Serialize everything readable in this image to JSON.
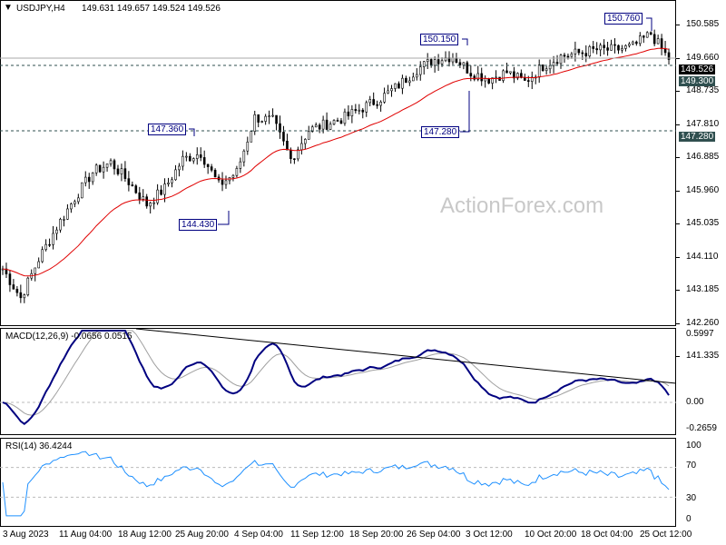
{
  "header": {
    "symbol": "USDJPY,H4",
    "ohlc": "149.631 149.657 149.524 149.526"
  },
  "watermark": "ActionForex.com",
  "price_axis": [
    "150.585",
    "149.660",
    "148.735",
    "147.810",
    "146.885",
    "145.960",
    "145.035",
    "144.110",
    "143.185",
    "142.260",
    "141.335"
  ],
  "price_tags": {
    "current": "149.526",
    "support1": "149.300",
    "support2": "147.280"
  },
  "annotations": {
    "high1": "150.760",
    "high2": "150.150",
    "high3": "147.360",
    "low1": "144.430",
    "low2": "147.280"
  },
  "macd": {
    "label": "MACD(12,26,9) -0.0656 0.0515",
    "axis": [
      "0.5997",
      "0.00",
      "-0.2659"
    ]
  },
  "rsi": {
    "label": "RSI(14) 36.4244",
    "axis": [
      "100",
      "70",
      "30",
      "0"
    ]
  },
  "x_axis": [
    "3 Aug 2023",
    "11 Aug 04:00",
    "18 Aug 12:00",
    "25 Aug 20:00",
    "4 Sep 04:00",
    "11 Sep 12:00",
    "18 Sep 20:00",
    "26 Sep 04:00",
    "3 Oct 12:00",
    "10 Oct 20:00",
    "18 Oct 04:00",
    "25 Oct 12:00"
  ],
  "colors": {
    "ma": "#e00000",
    "macd": "#000080",
    "signal": "#a0a0a0",
    "rsi": "#1e90ff",
    "tag": "#2f4f4f"
  },
  "chart_data": {
    "type": "candlestick",
    "closes": [
      143.0,
      142.1,
      143.3,
      144.3,
      145.2,
      146.0,
      146.3,
      145.7,
      145.0,
      145.5,
      146.4,
      146.6,
      145.6,
      146.0,
      147.7,
      147.6,
      146.4,
      147.3,
      147.5,
      147.7,
      148.0,
      148.3,
      148.7,
      149.2,
      149.5,
      149.6,
      149.1,
      148.9,
      149.1,
      148.8,
      149.3,
      149.6,
      149.7,
      149.8,
      149.8,
      149.9,
      150.3,
      149.5
    ],
    "ylim": [
      141.335,
      150.585
    ]
  }
}
